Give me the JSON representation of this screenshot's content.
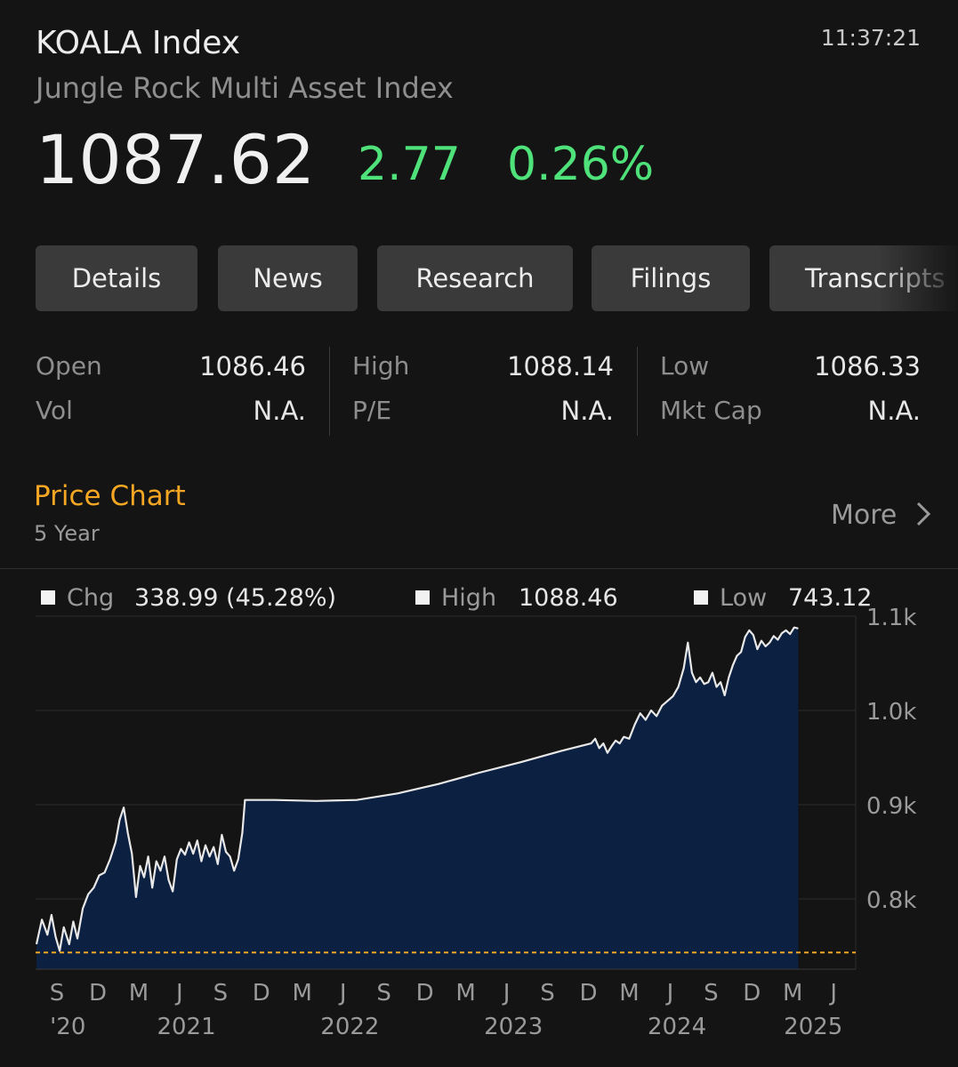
{
  "header": {
    "title": "KOALA Index",
    "subtitle": "Jungle Rock Multi Asset Index",
    "time": "11:37:21",
    "price": "1087.62",
    "change": "2.77",
    "change_pct": "0.26%",
    "up_color": "#4fe27a"
  },
  "tabs": [
    "Details",
    "News",
    "Research",
    "Filings",
    "Transcripts"
  ],
  "stats": {
    "open_label": "Open",
    "open": "1086.46",
    "high_label": "High",
    "high": "1088.14",
    "low_label": "Low",
    "low": "1086.33",
    "vol_label": "Vol",
    "vol": "N.A.",
    "pe_label": "P/E",
    "pe": "N.A.",
    "mktcap_label": "Mkt Cap",
    "mktcap": "N.A."
  },
  "chart_section": {
    "title": "Price Chart",
    "period": "5 Year",
    "more_label": "More",
    "accent_color": "#f5a623"
  },
  "legend": {
    "chg_label": "Chg",
    "chg_value": "338.99 (45.28%)",
    "high_label": "High",
    "high_value": "1088.46",
    "low_label": "Low",
    "low_value": "743.12"
  },
  "chart_data": {
    "type": "area",
    "ylim": [
      725,
      1100
    ],
    "y_ticks": [
      {
        "value": 1100,
        "label": "1.1k"
      },
      {
        "value": 1000,
        "label": "1.0k"
      },
      {
        "value": 900,
        "label": "0.9k"
      },
      {
        "value": 800,
        "label": "0.8k"
      }
    ],
    "x_ticks": [
      {
        "m": 0,
        "label": "S"
      },
      {
        "m": 3,
        "label": "D"
      },
      {
        "m": 6,
        "label": "M"
      },
      {
        "m": 9,
        "label": "J"
      },
      {
        "m": 12,
        "label": "S"
      },
      {
        "m": 15,
        "label": "D"
      },
      {
        "m": 18,
        "label": "M"
      },
      {
        "m": 21,
        "label": "J"
      },
      {
        "m": 24,
        "label": "S"
      },
      {
        "m": 27,
        "label": "D"
      },
      {
        "m": 30,
        "label": "M"
      },
      {
        "m": 33,
        "label": "J"
      },
      {
        "m": 36,
        "label": "S"
      },
      {
        "m": 39,
        "label": "D"
      },
      {
        "m": 42,
        "label": "M"
      },
      {
        "m": 45,
        "label": "J"
      },
      {
        "m": 48,
        "label": "S"
      },
      {
        "m": 51,
        "label": "D"
      },
      {
        "m": 54,
        "label": "M"
      },
      {
        "m": 57,
        "label": "J"
      }
    ],
    "year_labels": [
      {
        "m": 0.8,
        "label": "'20"
      },
      {
        "m": 9.5,
        "label": "2021"
      },
      {
        "m": 21.5,
        "label": "2022"
      },
      {
        "m": 33.5,
        "label": "2023"
      },
      {
        "m": 45.5,
        "label": "2024"
      },
      {
        "m": 55.5,
        "label": "2025"
      }
    ],
    "baseline": 743.12,
    "series": [
      {
        "points": [
          [
            -1.5,
            752
          ],
          [
            -1.1,
            778
          ],
          [
            -0.7,
            762
          ],
          [
            -0.4,
            783
          ],
          [
            -0.1,
            760
          ],
          [
            0.2,
            745
          ],
          [
            0.5,
            770
          ],
          [
            0.9,
            752
          ],
          [
            1.2,
            776
          ],
          [
            1.5,
            758
          ],
          [
            1.9,
            790
          ],
          [
            2.3,
            805
          ],
          [
            2.7,
            812
          ],
          [
            3.1,
            825
          ],
          [
            3.5,
            828
          ],
          [
            3.9,
            842
          ],
          [
            4.3,
            860
          ],
          [
            4.6,
            884
          ],
          [
            4.9,
            897
          ],
          [
            5.2,
            870
          ],
          [
            5.5,
            848
          ],
          [
            5.8,
            802
          ],
          [
            6.1,
            835
          ],
          [
            6.4,
            823
          ],
          [
            6.7,
            845
          ],
          [
            7.0,
            812
          ],
          [
            7.3,
            840
          ],
          [
            7.6,
            830
          ],
          [
            7.9,
            845
          ],
          [
            8.2,
            820
          ],
          [
            8.5,
            808
          ],
          [
            8.8,
            842
          ],
          [
            9.1,
            853
          ],
          [
            9.4,
            847
          ],
          [
            9.7,
            860
          ],
          [
            10.0,
            848
          ],
          [
            10.3,
            862
          ],
          [
            10.6,
            840
          ],
          [
            10.9,
            857
          ],
          [
            11.2,
            845
          ],
          [
            11.5,
            855
          ],
          [
            11.8,
            837
          ],
          [
            12.1,
            868
          ],
          [
            12.4,
            850
          ],
          [
            12.7,
            845
          ],
          [
            13.0,
            830
          ],
          [
            13.3,
            842
          ],
          [
            13.6,
            870
          ],
          [
            13.8,
            905
          ],
          [
            16,
            905
          ],
          [
            19,
            904
          ],
          [
            22,
            905
          ],
          [
            25,
            912
          ],
          [
            28,
            922
          ],
          [
            31,
            934
          ],
          [
            34,
            945
          ],
          [
            37,
            957
          ],
          [
            39.2,
            965
          ],
          [
            39.5,
            970
          ],
          [
            39.8,
            960
          ],
          [
            40.1,
            965
          ],
          [
            40.4,
            955
          ],
          [
            40.7,
            962
          ],
          [
            41.0,
            968
          ],
          [
            41.3,
            965
          ],
          [
            41.6,
            972
          ],
          [
            42.0,
            970
          ],
          [
            42.4,
            985
          ],
          [
            42.8,
            997
          ],
          [
            43.2,
            990
          ],
          [
            43.6,
            1000
          ],
          [
            44.0,
            994
          ],
          [
            44.4,
            1005
          ],
          [
            44.8,
            1010
          ],
          [
            45.2,
            1015
          ],
          [
            45.6,
            1025
          ],
          [
            46.0,
            1045
          ],
          [
            46.3,
            1072
          ],
          [
            46.6,
            1040
          ],
          [
            46.9,
            1030
          ],
          [
            47.2,
            1035
          ],
          [
            47.5,
            1028
          ],
          [
            47.8,
            1030
          ],
          [
            48.1,
            1040
          ],
          [
            48.4,
            1025
          ],
          [
            48.7,
            1030
          ],
          [
            49.0,
            1016
          ],
          [
            49.3,
            1035
          ],
          [
            49.6,
            1048
          ],
          [
            49.9,
            1058
          ],
          [
            50.2,
            1062
          ],
          [
            50.5,
            1078
          ],
          [
            50.8,
            1085
          ],
          [
            51.1,
            1080
          ],
          [
            51.4,
            1065
          ],
          [
            51.7,
            1074
          ],
          [
            52.0,
            1068
          ],
          [
            52.3,
            1072
          ],
          [
            52.6,
            1079
          ],
          [
            52.9,
            1075
          ],
          [
            53.2,
            1082
          ],
          [
            53.5,
            1085
          ],
          [
            53.8,
            1081
          ],
          [
            54.1,
            1088
          ],
          [
            54.4,
            1087
          ]
        ]
      }
    ]
  }
}
